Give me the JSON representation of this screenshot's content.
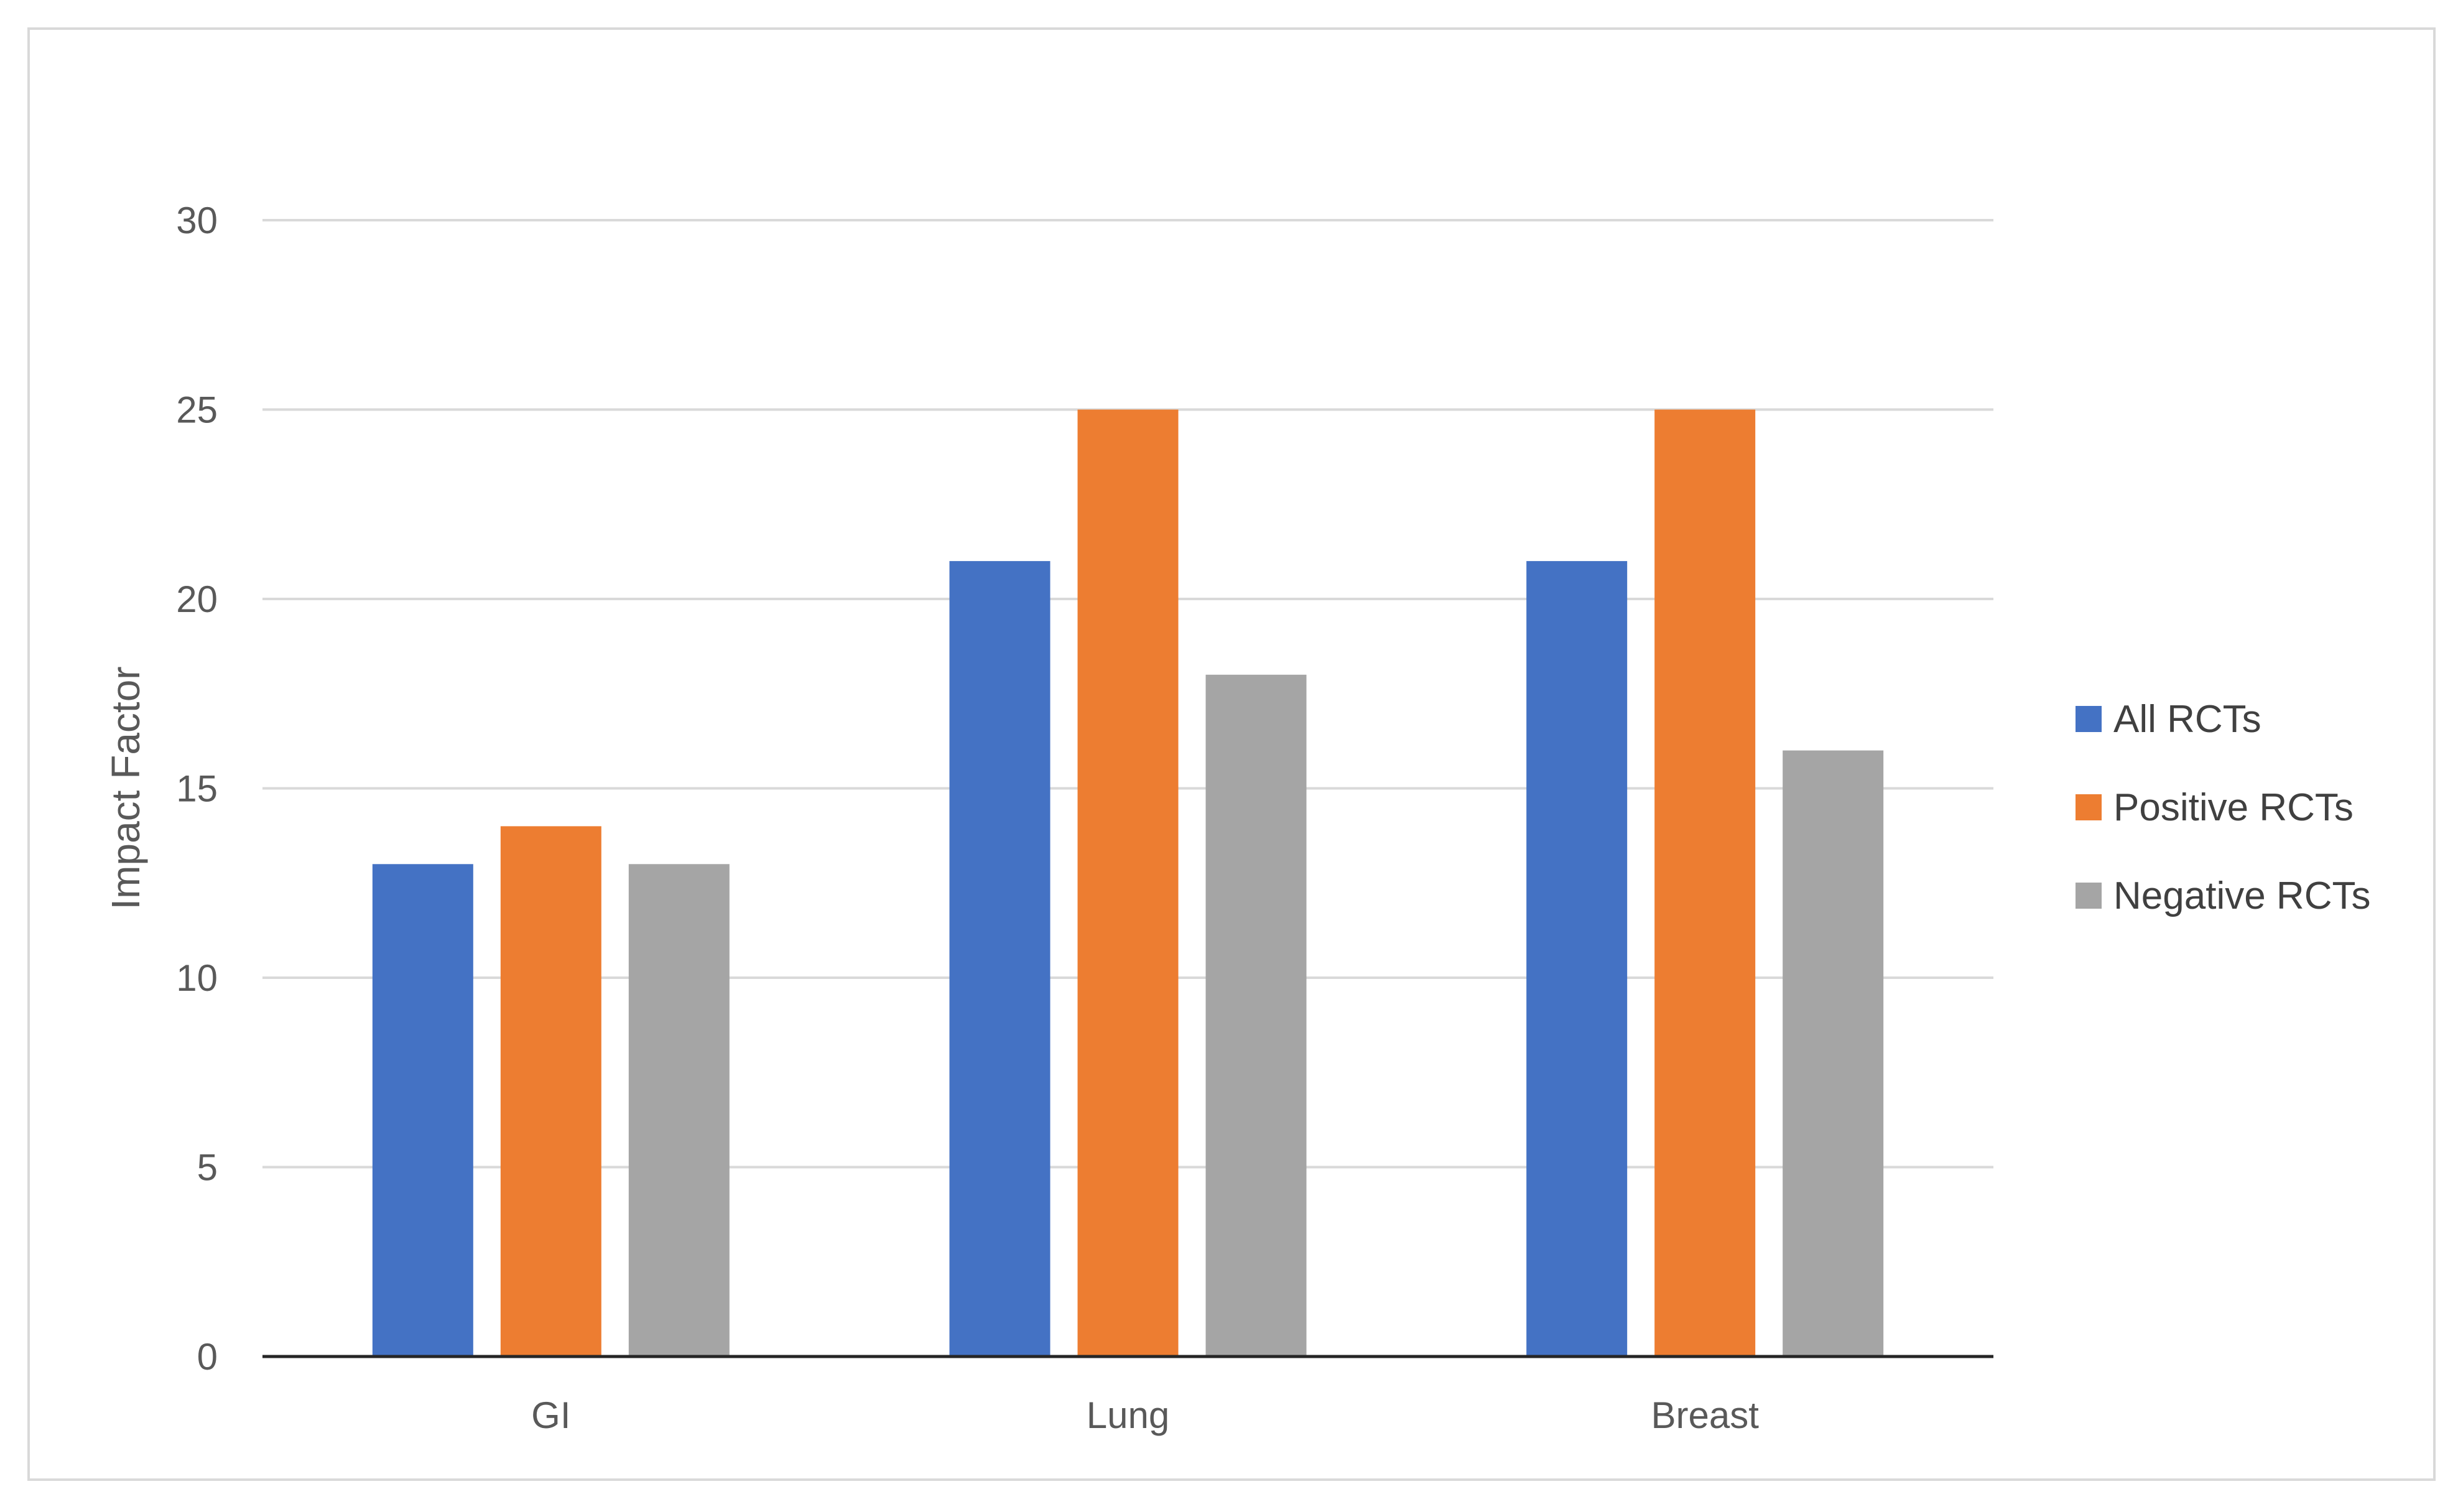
{
  "chart_data": {
    "type": "bar",
    "categories": [
      "GI",
      "Lung",
      "Breast"
    ],
    "series": [
      {
        "name": "All RCTs",
        "values": [
          13,
          21,
          21
        ],
        "color": "#4472C4"
      },
      {
        "name": "Positive RCTs",
        "values": [
          14,
          25,
          25
        ],
        "color": "#ED7D31"
      },
      {
        "name": "Negative RCTs",
        "values": [
          13,
          18,
          16
        ],
        "color": "#A5A5A5"
      }
    ],
    "title": "",
    "xlabel": "",
    "ylabel": "Impact Factor",
    "ylim": [
      0,
      30
    ],
    "yticks": [
      0,
      5,
      10,
      15,
      20,
      25,
      30
    ],
    "grid": true,
    "legend_position": "right"
  }
}
